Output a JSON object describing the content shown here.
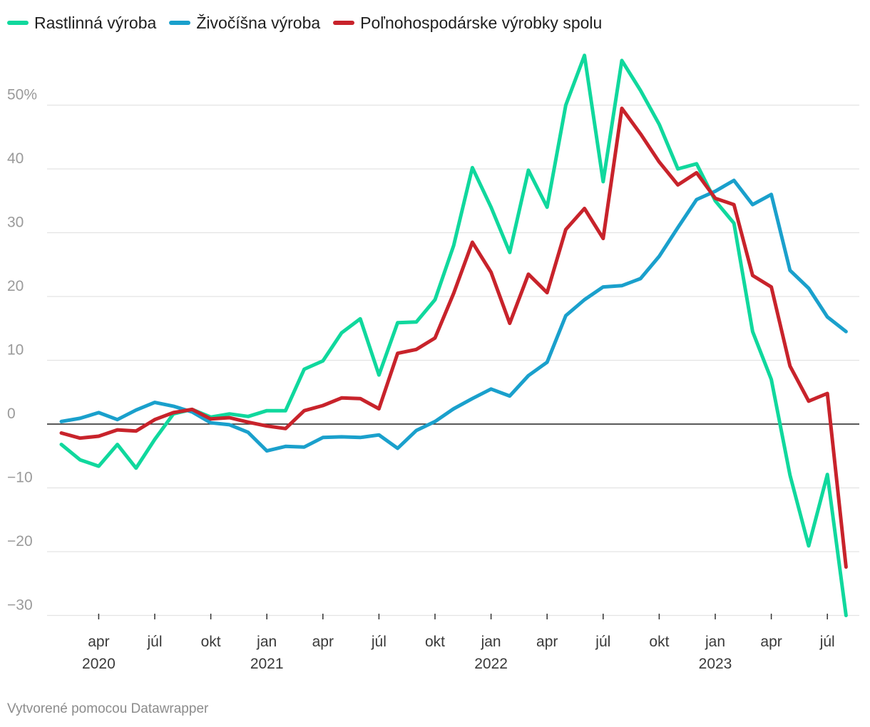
{
  "chart_data": {
    "type": "line",
    "title": "",
    "xlabel": "",
    "ylabel": "",
    "ylim": [
      -30,
      58
    ],
    "y_ticks": [
      -30,
      -20,
      -10,
      0,
      10,
      20,
      30,
      40,
      50
    ],
    "y_tick_labels": [
      "−30",
      "−20",
      "−10",
      "0",
      "10",
      "20",
      "30",
      "40",
      "50%"
    ],
    "x_ticks": [
      {
        "index": 2,
        "label": "apr",
        "year": "2020"
      },
      {
        "index": 5,
        "label": "júl",
        "year": ""
      },
      {
        "index": 8,
        "label": "okt",
        "year": ""
      },
      {
        "index": 11,
        "label": "jan",
        "year": "2021"
      },
      {
        "index": 14,
        "label": "apr",
        "year": ""
      },
      {
        "index": 17,
        "label": "júl",
        "year": ""
      },
      {
        "index": 20,
        "label": "okt",
        "year": ""
      },
      {
        "index": 23,
        "label": "jan",
        "year": "2022"
      },
      {
        "index": 26,
        "label": "apr",
        "year": ""
      },
      {
        "index": 29,
        "label": "júl",
        "year": ""
      },
      {
        "index": 32,
        "label": "okt",
        "year": ""
      },
      {
        "index": 35,
        "label": "jan",
        "year": "2023"
      },
      {
        "index": 38,
        "label": "apr",
        "year": ""
      },
      {
        "index": 41,
        "label": "júl",
        "year": ""
      }
    ],
    "x_start": "2020-01",
    "legend_position": "top-left",
    "series": [
      {
        "name": "Rastlinná výroba",
        "color": "#10d89d",
        "values": [
          -3.2,
          -5.6,
          -6.6,
          -3.2,
          -6.9,
          -2.4,
          1.6,
          2.3,
          1.1,
          1.6,
          1.2,
          2.1,
          2.1,
          8.6,
          9.9,
          14.3,
          16.5,
          7.7,
          15.9,
          16.0,
          19.5,
          28.0,
          40.2,
          34.0,
          26.9,
          39.8,
          34.0,
          50.0,
          57.8,
          38.0,
          57.0,
          52.3,
          47.0,
          40.0,
          40.8,
          35.0,
          31.5,
          14.5,
          7.0,
          -8.0,
          -19.1,
          -7.9,
          -30.0
        ]
      },
      {
        "name": "Živočíšna výroba",
        "color": "#1aa0cc",
        "values": [
          0.4,
          0.9,
          1.8,
          0.7,
          2.2,
          3.4,
          2.8,
          1.9,
          0.2,
          -0.1,
          -1.3,
          -4.2,
          -3.5,
          -3.6,
          -2.1,
          -2.0,
          -2.1,
          -1.7,
          -3.8,
          -1.0,
          0.4,
          2.4,
          4.0,
          5.5,
          4.4,
          7.6,
          9.7,
          17.0,
          19.5,
          21.5,
          21.7,
          22.8,
          26.3,
          30.8,
          35.2,
          36.5,
          38.2,
          34.4,
          36.0,
          24.1,
          21.3,
          16.8,
          14.5
        ]
      },
      {
        "name": "Poľnohospodárske výrobky spolu",
        "color": "#c8232b",
        "values": [
          -1.4,
          -2.2,
          -1.9,
          -0.9,
          -1.1,
          0.7,
          1.8,
          2.3,
          0.8,
          1.0,
          0.3,
          -0.3,
          -0.7,
          2.1,
          2.9,
          4.1,
          4.0,
          2.4,
          11.1,
          11.7,
          13.5,
          20.5,
          28.5,
          23.8,
          15.8,
          23.5,
          20.6,
          30.5,
          33.8,
          29.1,
          49.5,
          45.5,
          41.1,
          37.5,
          39.4,
          35.4,
          34.4,
          23.3,
          21.5,
          9.1,
          3.6,
          4.8,
          -22.4
        ]
      }
    ]
  },
  "footer": {
    "credit": "Vytvorené pomocou Datawrapper"
  }
}
